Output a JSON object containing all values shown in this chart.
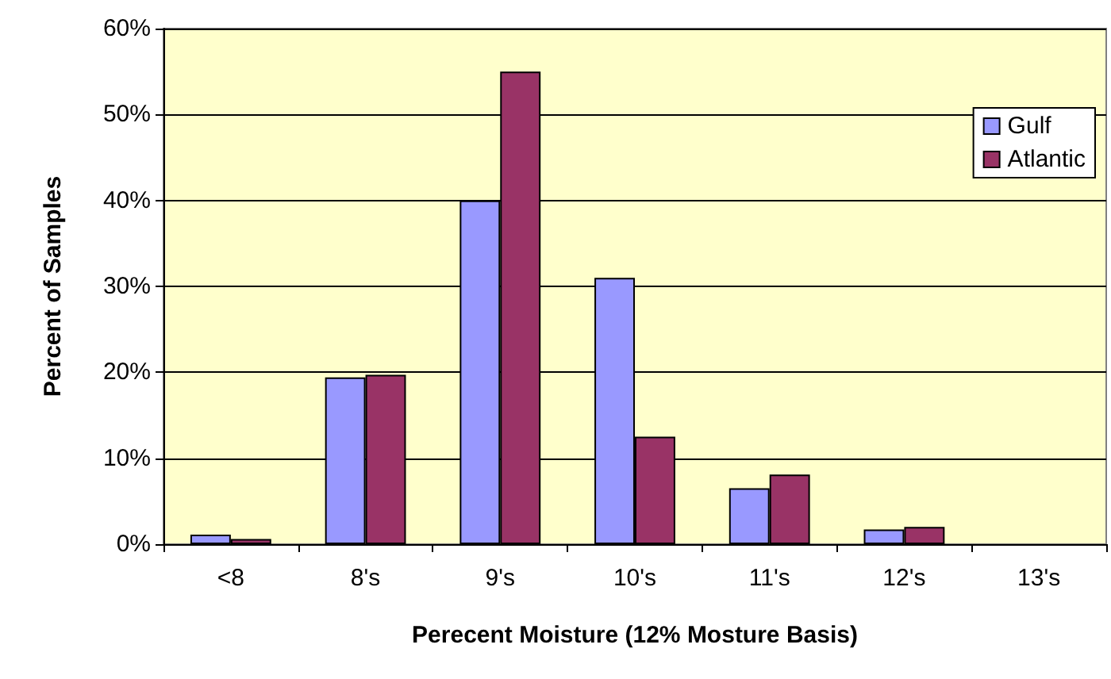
{
  "chart_data": {
    "type": "bar",
    "xlabel": "Perecent Moisture (12% Mosture Basis)",
    "ylabel": "Percent of Samples",
    "categories": [
      "<8",
      "8's",
      "9's",
      "10's",
      "11's",
      "12's",
      "13's"
    ],
    "series": [
      {
        "name": "Gulf",
        "color": "#9999ff",
        "values": [
          1.1,
          19.4,
          40,
          31,
          6.5,
          1.7,
          0
        ]
      },
      {
        "name": "Atlantic",
        "color": "#993366",
        "values": [
          0.6,
          19.7,
          55,
          12.5,
          8.1,
          2,
          0
        ]
      }
    ],
    "ylim": [
      0,
      60
    ],
    "yticks": [
      {
        "value": 0,
        "label": "0%"
      },
      {
        "value": 10,
        "label": "10%"
      },
      {
        "value": 20,
        "label": "20%"
      },
      {
        "value": 30,
        "label": "30%"
      },
      {
        "value": 40,
        "label": "40%"
      },
      {
        "value": 50,
        "label": "50%"
      },
      {
        "value": 60,
        "label": "60%"
      }
    ],
    "grid": "y",
    "legend": "top right"
  }
}
